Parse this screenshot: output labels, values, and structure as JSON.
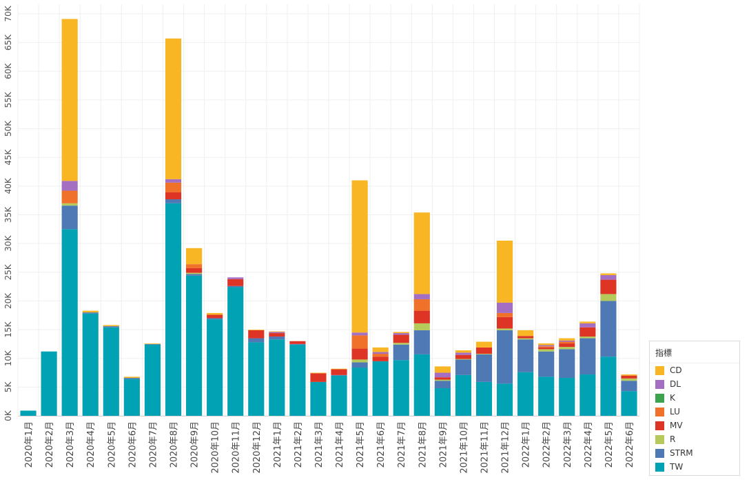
{
  "chart_data": {
    "type": "bar",
    "stacked": true,
    "categories": [
      "2020年1月",
      "2020年2月",
      "2020年3月",
      "2020年4月",
      "2020年5月",
      "2020年6月",
      "2020年7月",
      "2020年8月",
      "2020年9月",
      "2020年10月",
      "2020年11月",
      "2020年12月",
      "2021年1月",
      "2021年2月",
      "2021年3月",
      "2021年4月",
      "2021年5月",
      "2021年6月",
      "2021年7月",
      "2021年8月",
      "2021年9月",
      "2021年10月",
      "2021年11月",
      "2021年12月",
      "2022年1月",
      "2022年2月",
      "2022年3月",
      "2022年4月",
      "2022年5月",
      "2022年6月"
    ],
    "ylim": [
      0,
      70000
    ],
    "yticks": [
      0,
      5000,
      10000,
      15000,
      20000,
      25000,
      30000,
      35000,
      40000,
      45000,
      50000,
      55000,
      60000,
      65000,
      70000
    ],
    "ytick_labels": [
      "0K",
      "5K",
      "10K",
      "15K",
      "20K",
      "25K",
      "30K",
      "35K",
      "40K",
      "45K",
      "50K",
      "55K",
      "60K",
      "65K",
      "70K"
    ],
    "legend_title": "指標",
    "series": [
      {
        "name": "TW",
        "color": "#00a2b3",
        "values": [
          900,
          11200,
          32500,
          17800,
          15400,
          6400,
          12400,
          37000,
          24400,
          16800,
          22400,
          12800,
          13300,
          12400,
          5900,
          7000,
          8400,
          9500,
          9700,
          10700,
          4800,
          7100,
          5900,
          5600,
          7600,
          6800,
          6600,
          7200,
          10300,
          4300
        ]
      },
      {
        "name": "STRM",
        "color": "#4e79b4",
        "values": [
          0,
          0,
          4100,
          200,
          200,
          200,
          100,
          700,
          300,
          200,
          200,
          700,
          500,
          100,
          0,
          100,
          900,
          0,
          2700,
          4200,
          1300,
          2700,
          4800,
          9300,
          5700,
          4400,
          5000,
          6300,
          9700,
          1800
        ]
      },
      {
        "name": "R",
        "color": "#b5ca5b",
        "values": [
          0,
          0,
          400,
          0,
          0,
          0,
          0,
          0,
          200,
          0,
          0,
          0,
          0,
          0,
          0,
          0,
          500,
          0,
          300,
          1200,
          200,
          100,
          100,
          300,
          200,
          400,
          400,
          300,
          1200,
          400
        ]
      },
      {
        "name": "MV",
        "color": "#dd3425",
        "values": [
          0,
          0,
          0,
          0,
          0,
          0,
          0,
          1200,
          800,
          600,
          1200,
          1400,
          600,
          500,
          1500,
          1000,
          1900,
          800,
          1400,
          2200,
          400,
          700,
          1100,
          2000,
          400,
          300,
          600,
          1600,
          2500,
          500
        ]
      },
      {
        "name": "LU",
        "color": "#f0712a",
        "values": [
          0,
          0,
          2200,
          0,
          0,
          0,
          0,
          1700,
          700,
          0,
          0,
          0,
          0,
          0,
          0,
          0,
          2300,
          500,
          0,
          2000,
          0,
          0,
          0,
          700,
          0,
          200,
          300,
          0,
          0,
          0
        ]
      },
      {
        "name": "K",
        "color": "#3ea34f",
        "values": [
          0,
          0,
          0,
          0,
          0,
          0,
          0,
          0,
          0,
          0,
          0,
          0,
          0,
          0,
          0,
          0,
          0,
          0,
          0,
          0,
          0,
          0,
          0,
          0,
          0,
          0,
          0,
          0,
          0,
          0
        ]
      },
      {
        "name": "DL",
        "color": "#a46ec2",
        "values": [
          0,
          0,
          1700,
          0,
          0,
          0,
          0,
          600,
          0,
          0,
          300,
          0,
          200,
          0,
          0,
          0,
          500,
          300,
          300,
          900,
          800,
          400,
          0,
          1800,
          0,
          200,
          200,
          700,
          800,
          0
        ]
      },
      {
        "name": "CD",
        "color": "#f8b524",
        "values": [
          0,
          0,
          28200,
          300,
          200,
          200,
          100,
          24500,
          2800,
          300,
          0,
          100,
          100,
          0,
          100,
          100,
          26500,
          800,
          200,
          14200,
          1100,
          400,
          1000,
          10800,
          1000,
          300,
          400,
          300,
          300,
          200
        ]
      }
    ],
    "legend_order": [
      "CD",
      "DL",
      "K",
      "LU",
      "MV",
      "R",
      "STRM",
      "TW"
    ],
    "legend_position": "bottom-right"
  }
}
